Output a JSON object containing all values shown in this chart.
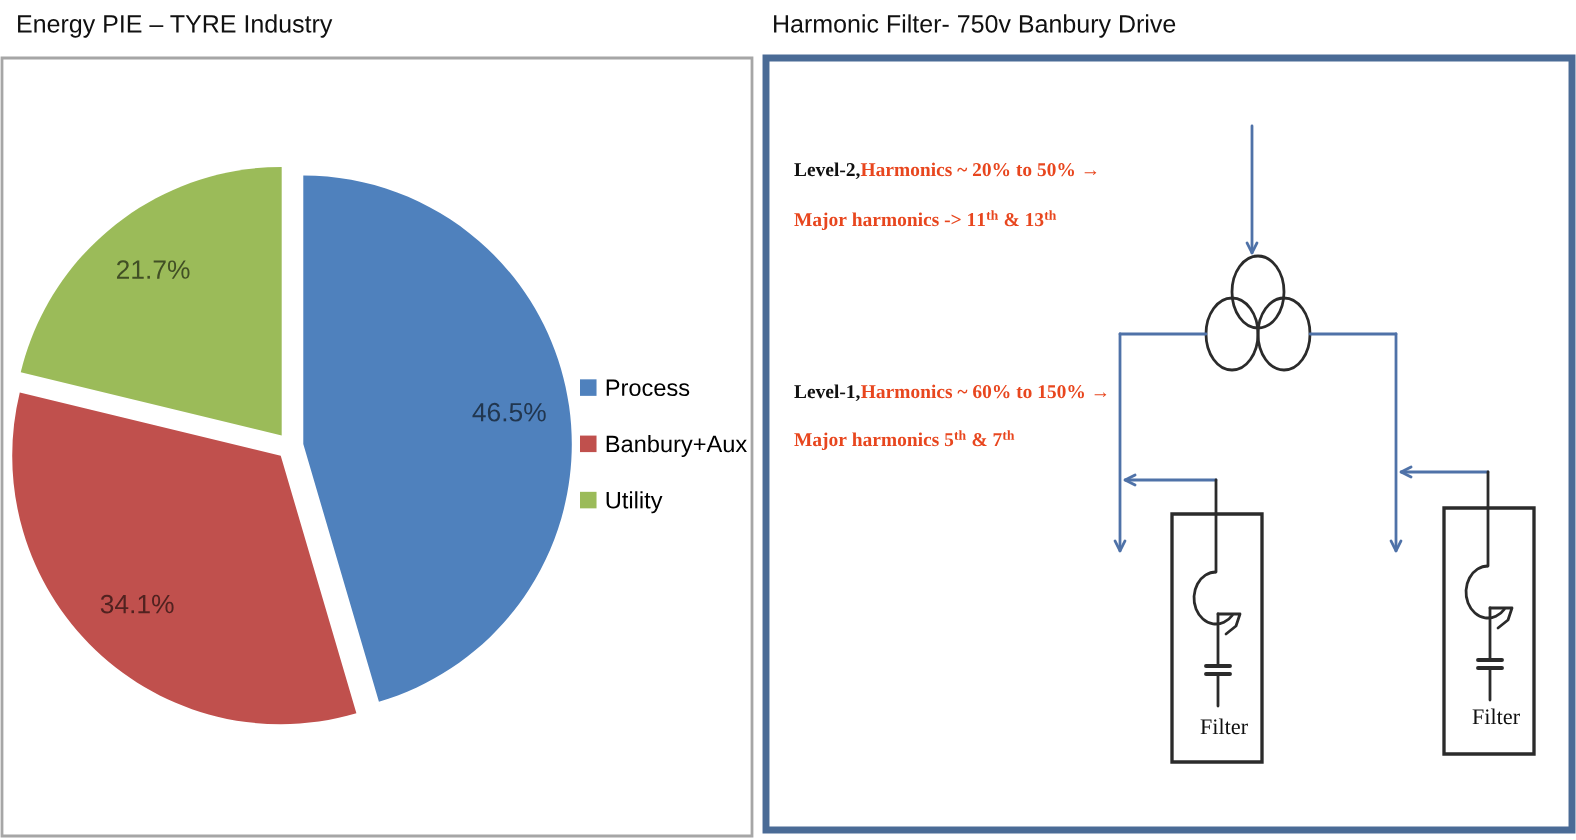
{
  "chart_data": [
    {
      "type": "pie",
      "title": "Energy PIE – TYRE Industry",
      "categories": [
        "Process",
        "Banbury+Aux",
        "Utility"
      ],
      "values": [
        46.5,
        34.1,
        21.7
      ],
      "colors": [
        "#4f81bd",
        "#c0504d",
        "#9bbb59"
      ],
      "value_labels": [
        "46.5%",
        "34.1%",
        "21.7%"
      ],
      "legend": "right"
    },
    {
      "type": "other",
      "title": "Harmonic Filter- 750v Banbury Drive",
      "annotations": [
        "Level-2,",
        "Harmonics ~ 20% to 50% →",
        "Major harmonics -> 11$^{th}$ & 13$^{th}$",
        "Level-1,",
        "Harmonics ~ 60% to 150% →",
        "Major harmonics 5$^{th}$ & 7$^{th}$",
        "Filter",
        "Filter"
      ]
    }
  ]
}
